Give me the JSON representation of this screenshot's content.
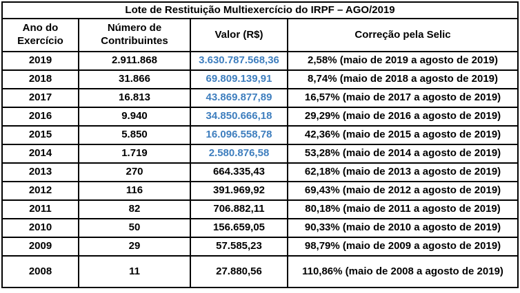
{
  "colors": {
    "border": "#000000",
    "text": "#000000",
    "valor_highlight_blue": "#3E7EBE",
    "background": "#ffffff"
  },
  "table": {
    "title": "Lote de Restituição Multiexercício do IRPF – AGO/2019",
    "headers": {
      "ano": "Ano do Exercício",
      "contribuintes": "Número de Contribuintes",
      "valor": "Valor (R$)",
      "correcao": "Correção pela Selic"
    },
    "rows": [
      {
        "ano": "2019",
        "contribuintes": "2.911.868",
        "valor": "3.630.787.568,36",
        "valor_color": "blue",
        "correcao": "2,58% (maio de 2019 a agosto de 2019)"
      },
      {
        "ano": "2018",
        "contribuintes": "31.866",
        "valor": "69.809.139,91",
        "valor_color": "blue",
        "correcao": "8,74% (maio de 2018 a agosto de 2019)"
      },
      {
        "ano": "2017",
        "contribuintes": "16.813",
        "valor": "43.869.877,89",
        "valor_color": "blue",
        "correcao": "16,57% (maio de 2017 a agosto de 2019)"
      },
      {
        "ano": "2016",
        "contribuintes": "9.940",
        "valor": "34.850.666,18",
        "valor_color": "blue",
        "correcao": "29,29% (maio de 2016 a agosto de 2019)"
      },
      {
        "ano": "2015",
        "contribuintes": "5.850",
        "valor": "16.096.558,78",
        "valor_color": "blue",
        "correcao": "42,36% (maio de 2015 a agosto de 2019)"
      },
      {
        "ano": "2014",
        "contribuintes": "1.719",
        "valor": "2.580.876,58",
        "valor_color": "blue",
        "correcao": "53,28% (maio de 2014 a agosto de 2019)"
      },
      {
        "ano": "2013",
        "contribuintes": "270",
        "valor": "664.335,43",
        "valor_color": "black",
        "correcao": "62,18% (maio de 2013 a agosto de 2019)"
      },
      {
        "ano": "2012",
        "contribuintes": "116",
        "valor": "391.969,92",
        "valor_color": "black",
        "correcao": "69,43% (maio de 2012 a agosto de 2019)"
      },
      {
        "ano": "2011",
        "contribuintes": "82",
        "valor": "706.882,11",
        "valor_color": "black",
        "correcao": "80,18% (maio de 2011 a agosto de 2019)"
      },
      {
        "ano": "2010",
        "contribuintes": "50",
        "valor": "156.659,05",
        "valor_color": "black",
        "correcao": "90,33% (maio de 2010 a agosto de 2019)"
      },
      {
        "ano": "2009",
        "contribuintes": "29",
        "valor": "57.585,23",
        "valor_color": "black",
        "correcao": "98,79% (maio de 2009 a agosto de 2019)"
      },
      {
        "ano": "2008",
        "contribuintes": "11",
        "valor": "27.880,56",
        "valor_color": "black",
        "correcao": "110,86% (maio de 2008 a agosto de 2019)"
      }
    ]
  },
  "chart_data": {
    "type": "table",
    "title": "Lote de Restituição Multiexercício do IRPF – AGO/2019",
    "columns": [
      "Ano do Exercício",
      "Número de Contribuintes",
      "Valor (R$)",
      "Correção pela Selic"
    ],
    "rows": [
      [
        "2019",
        "2.911.868",
        "3.630.787.568,36",
        "2,58% (maio de 2019 a agosto de 2019)"
      ],
      [
        "2018",
        "31.866",
        "69.809.139,91",
        "8,74% (maio de 2018 a agosto de 2019)"
      ],
      [
        "2017",
        "16.813",
        "43.869.877,89",
        "16,57% (maio de 2017 a agosto de 2019)"
      ],
      [
        "2016",
        "9.940",
        "34.850.666,18",
        "29,29% (maio de 2016 a agosto de 2019)"
      ],
      [
        "2015",
        "5.850",
        "16.096.558,78",
        "42,36% (maio de 2015 a agosto de 2019)"
      ],
      [
        "2014",
        "1.719",
        "2.580.876,58",
        "53,28% (maio de 2014 a agosto de 2019)"
      ],
      [
        "2013",
        "270",
        "664.335,43",
        "62,18% (maio de 2013 a agosto de 2019)"
      ],
      [
        "2012",
        "116",
        "391.969,92",
        "69,43% (maio de 2012 a agosto de 2019)"
      ],
      [
        "2011",
        "82",
        "706.882,11",
        "80,18% (maio de 2011 a agosto de 2019)"
      ],
      [
        "2010",
        "50",
        "156.659,05",
        "90,33% (maio de 2010 a agosto de 2019)"
      ],
      [
        "2009",
        "29",
        "57.585,23",
        "98,79% (maio de 2009 a agosto de 2019)"
      ],
      [
        "2008",
        "11",
        "27.880,56",
        "110,86% (maio de 2008 a agosto de 2019)"
      ]
    ]
  }
}
